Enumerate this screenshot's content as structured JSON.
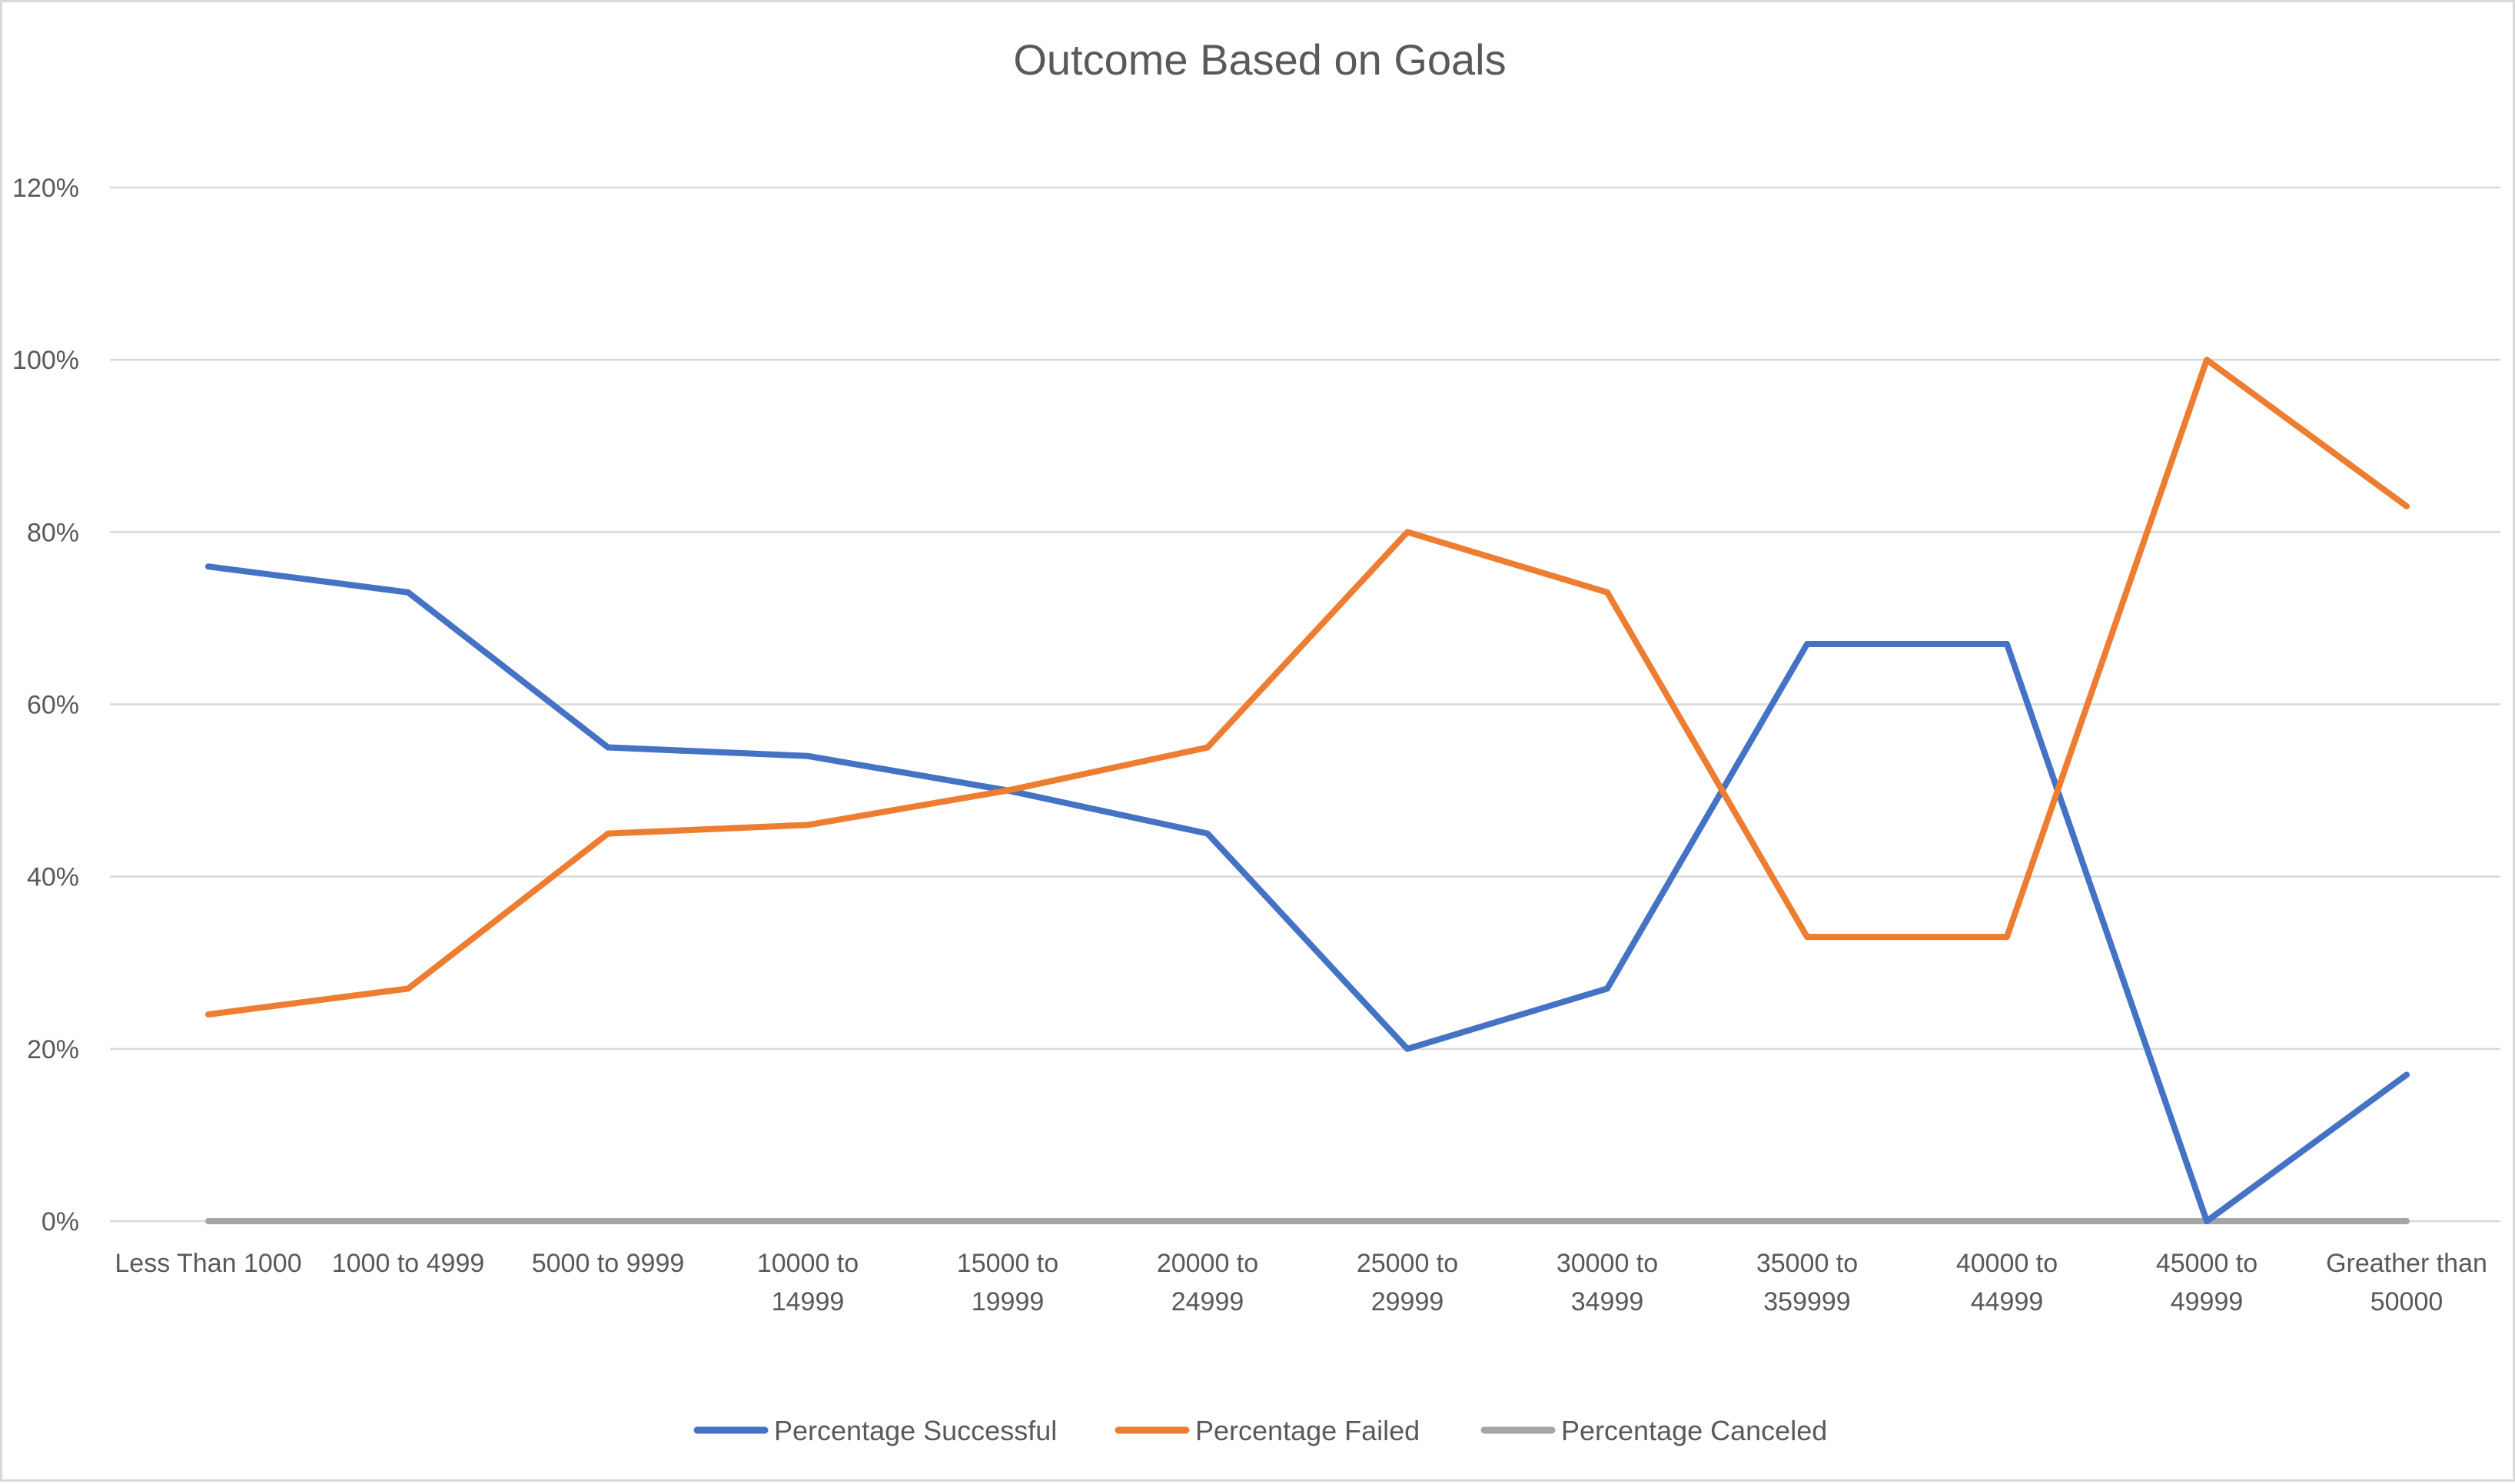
{
  "chart_data": {
    "type": "line",
    "title": "Outcome Based on Goals",
    "xlabel": "",
    "ylabel": "",
    "categories": [
      [
        "Less Than 1000"
      ],
      [
        "1000 to 4999"
      ],
      [
        "5000 to 9999"
      ],
      [
        "10000 to",
        "14999"
      ],
      [
        "15000 to",
        "19999"
      ],
      [
        "20000 to",
        "24999"
      ],
      [
        "25000 to",
        "29999"
      ],
      [
        "30000 to",
        "34999"
      ],
      [
        "35000 to",
        "359999"
      ],
      [
        "40000 to",
        "44999"
      ],
      [
        "45000 to",
        "49999"
      ],
      [
        "Greather than",
        "50000"
      ]
    ],
    "y_ticks": [
      "0%",
      "20%",
      "40%",
      "60%",
      "80%",
      "100%",
      "120%"
    ],
    "ylim": [
      0,
      120
    ],
    "grid": true,
    "legend_position": "bottom",
    "series": [
      {
        "name": "Percentage Successful",
        "color": "#4472c4",
        "values": [
          76,
          73,
          55,
          54,
          50,
          45,
          20,
          27,
          67,
          67,
          0,
          17
        ]
      },
      {
        "name": "Percentage Failed",
        "color": "#ed7d31",
        "values": [
          24,
          27,
          45,
          46,
          50,
          55,
          80,
          73,
          33,
          33,
          100,
          83
        ]
      },
      {
        "name": "Percentage Canceled",
        "color": "#a5a5a5",
        "values": [
          0,
          0,
          0,
          0,
          0,
          0,
          0,
          0,
          0,
          0,
          0,
          0
        ]
      }
    ]
  }
}
